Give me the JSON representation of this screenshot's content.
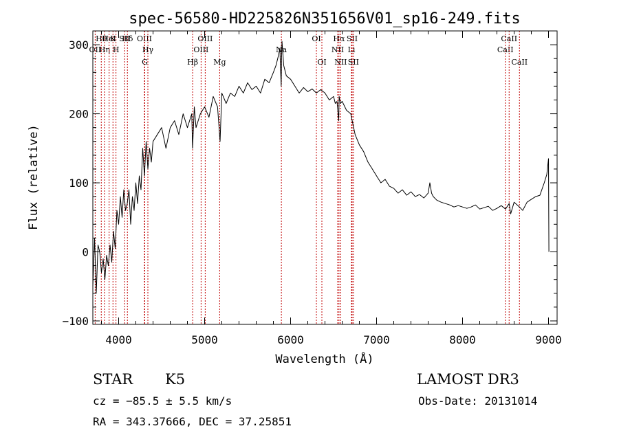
{
  "chart_data": {
    "type": "line",
    "title": "spec-56580-HD225826N351656V01_sp16-249.fits",
    "xlabel": "Wavelength (Å)",
    "ylabel": "Flux (relative)",
    "xlim": [
      3700,
      9100
    ],
    "ylim": [
      -105,
      320
    ],
    "xticks": [
      4000,
      5000,
      6000,
      7000,
      8000,
      9000
    ],
    "yticks": [
      -100,
      0,
      100,
      200,
      300
    ],
    "line_color": "#000000",
    "marker_color": "#c00000",
    "series": [
      {
        "x": [
          3700,
          3720,
          3740,
          3760,
          3780,
          3800,
          3820,
          3840,
          3860,
          3880,
          3900,
          3920,
          3940,
          3960,
          3980,
          4000,
          4020,
          4040,
          4060,
          4080,
          4100,
          4120,
          4140,
          4160,
          4180,
          4200,
          4220,
          4240,
          4260,
          4280,
          4300,
          4320,
          4340,
          4360,
          4380,
          4400,
          4450,
          4500,
          4550,
          4600,
          4650,
          4700,
          4750,
          4800,
          4850,
          4860,
          4880,
          4900,
          4950,
          5000,
          5050,
          5100,
          5150,
          5180,
          5200,
          5250,
          5300,
          5350,
          5400,
          5450,
          5500,
          5550,
          5600,
          5650,
          5700,
          5750,
          5800,
          5830,
          5860,
          5875,
          5890,
          5895,
          5900,
          5920,
          5950,
          6000,
          6050,
          6100,
          6150,
          6200,
          6250,
          6300,
          6350,
          6400,
          6450,
          6500,
          6520,
          6540,
          6560,
          6565,
          6580,
          6600,
          6650,
          6700,
          6750,
          6800,
          6850,
          6900,
          6950,
          7000,
          7050,
          7100,
          7150,
          7200,
          7250,
          7300,
          7350,
          7400,
          7450,
          7500,
          7550,
          7600,
          7620,
          7640,
          7660,
          7700,
          7750,
          7800,
          7850,
          7900,
          7950,
          8000,
          8050,
          8100,
          8150,
          8200,
          8250,
          8300,
          8350,
          8400,
          8450,
          8500,
          8542,
          8560,
          8600,
          8662,
          8700,
          8750,
          8800,
          8850,
          8900,
          8950,
          8980,
          9000,
          9005
        ],
        "y": [
          -50,
          20,
          -60,
          10,
          0,
          -30,
          -10,
          -40,
          -5,
          -20,
          10,
          -15,
          30,
          5,
          60,
          40,
          80,
          50,
          90,
          60,
          70,
          90,
          40,
          80,
          60,
          100,
          70,
          110,
          90,
          150,
          110,
          160,
          120,
          150,
          130,
          160,
          170,
          180,
          150,
          180,
          190,
          170,
          200,
          180,
          200,
          150,
          210,
          180,
          200,
          210,
          195,
          225,
          210,
          160,
          230,
          215,
          230,
          225,
          240,
          230,
          245,
          235,
          240,
          230,
          250,
          245,
          260,
          270,
          285,
          295,
          240,
          280,
          305,
          270,
          255,
          250,
          240,
          230,
          238,
          232,
          236,
          230,
          235,
          230,
          220,
          225,
          215,
          218,
          190,
          225,
          215,
          218,
          205,
          200,
          170,
          155,
          145,
          130,
          120,
          110,
          100,
          105,
          95,
          92,
          85,
          90,
          82,
          87,
          80,
          83,
          78,
          85,
          100,
          85,
          80,
          75,
          72,
          70,
          68,
          65,
          67,
          65,
          63,
          65,
          68,
          62,
          64,
          66,
          60,
          63,
          67,
          62,
          70,
          55,
          72,
          65,
          60,
          72,
          76,
          80,
          82,
          100,
          112,
          135,
          0
        ]
      }
    ],
    "spectral_lines": [
      {
        "label": "OII",
        "wl": 3727,
        "row": 2
      },
      {
        "label": "Hθ",
        "wl": 3798,
        "row": 1
      },
      {
        "label": "Hη",
        "wl": 3835,
        "row": 2
      },
      {
        "label": "HeI",
        "wl": 3889,
        "row": 1
      },
      {
        "label": "K",
        "wl": 3934,
        "row": 1
      },
      {
        "label": "H",
        "wl": 3969,
        "row": 2
      },
      {
        "label": "SII",
        "wl": 4070,
        "row": 1
      },
      {
        "label": "Hδ",
        "wl": 4102,
        "row": 1
      },
      {
        "label": "OIII",
        "wl": 4300,
        "row": 1
      },
      {
        "label": "G",
        "wl": 4304,
        "row": 3
      },
      {
        "label": "Hγ",
        "wl": 4340,
        "row": 2
      },
      {
        "label": "Hβ",
        "wl": 4861,
        "row": 3
      },
      {
        "label": "OIII",
        "wl": 4959,
        "row": 2
      },
      {
        "label": "OIII",
        "wl": 5007,
        "row": 1
      },
      {
        "label": "Mg",
        "wl": 5175,
        "row": 3
      },
      {
        "label": "Na",
        "wl": 5893,
        "row": 2
      },
      {
        "label": "OI",
        "wl": 6300,
        "row": 1
      },
      {
        "label": "OI",
        "wl": 6364,
        "row": 3
      },
      {
        "label": "NII",
        "wl": 6548,
        "row": 2
      },
      {
        "label": "Hα",
        "wl": 6563,
        "row": 1
      },
      {
        "label": "NII",
        "wl": 6583,
        "row": 3
      },
      {
        "label": "Li",
        "wl": 6708,
        "row": 2
      },
      {
        "label": "SII",
        "wl": 6716,
        "row": 1
      },
      {
        "label": "SII",
        "wl": 6731,
        "row": 3
      },
      {
        "label": "CaII",
        "wl": 8498,
        "row": 2
      },
      {
        "label": "CaII",
        "wl": 8542,
        "row": 1
      },
      {
        "label": "CaII",
        "wl": 8662,
        "row": 3
      }
    ]
  },
  "info": {
    "class_label": "STAR",
    "subclass": "K5",
    "cz_text": "cz = −85.5 ± 5.5 km/s",
    "radec_text": "RA = 343.37666, DEC =  37.25851",
    "survey": "LAMOST DR3",
    "obs_date": "Obs-Date: 20131014"
  }
}
